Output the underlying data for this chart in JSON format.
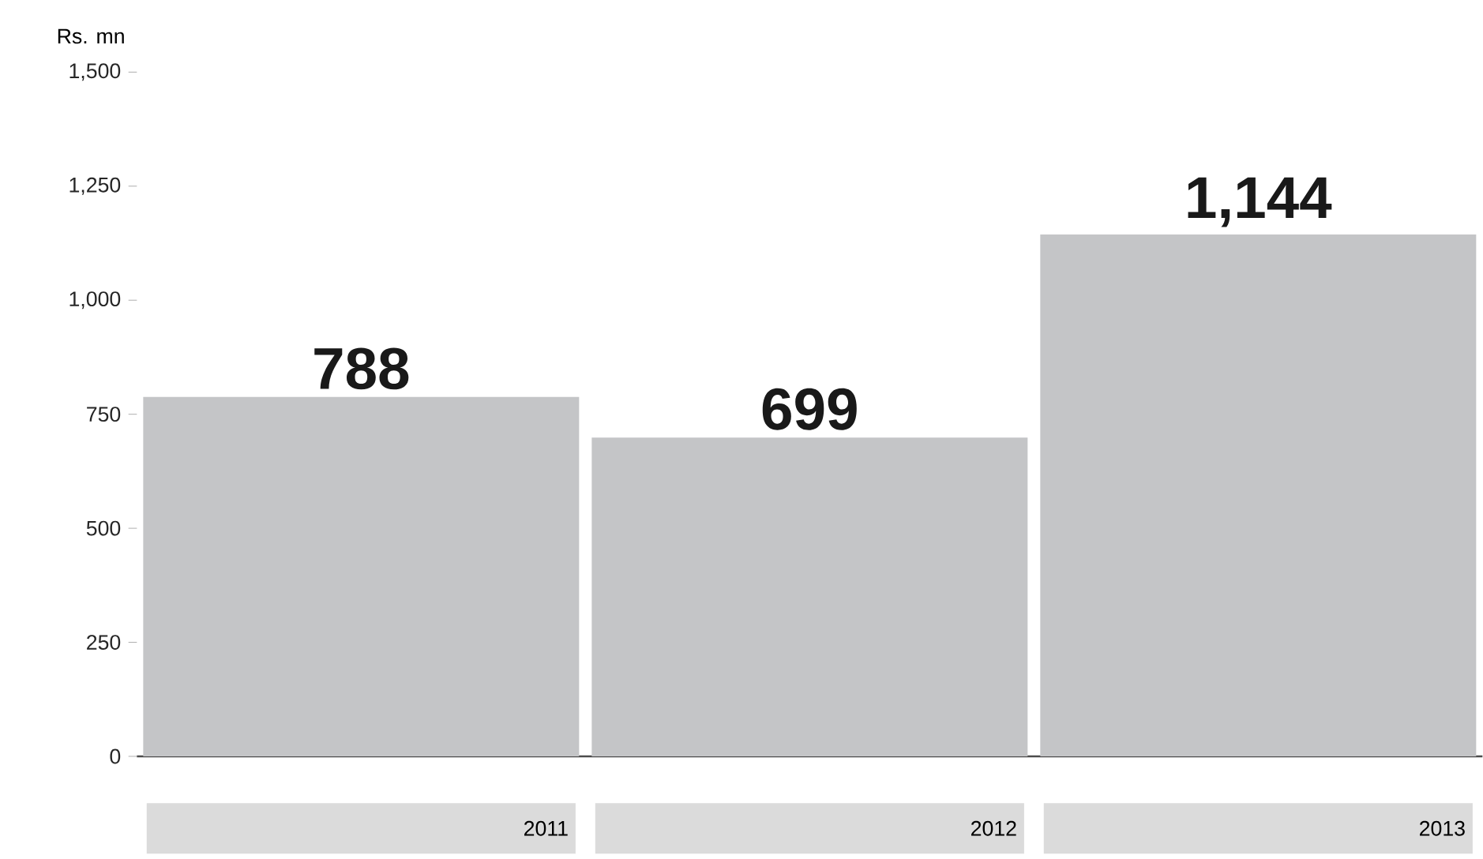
{
  "chart_data": {
    "type": "bar",
    "ylabel": "Rs. mn",
    "categories": [
      "2011",
      "2012",
      "2013"
    ],
    "values": [
      788,
      699,
      1144
    ],
    "value_labels": [
      "788",
      "699",
      "1,144"
    ],
    "color": "#c4c5c7",
    "ylim": [
      0,
      1500
    ],
    "yticks": [
      0,
      250,
      500,
      750,
      {
        "value": 1000,
        "label": "1,000"
      },
      {
        "value": 1250,
        "label": "1,250"
      },
      {
        "value": 1500,
        "label": "1,500"
      }
    ]
  }
}
